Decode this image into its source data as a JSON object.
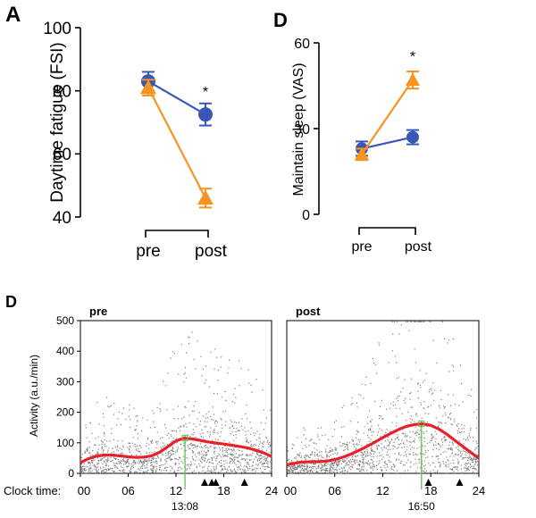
{
  "panels": {
    "A": {
      "letter": "A"
    },
    "D1": {
      "letter": "D"
    },
    "D2": {
      "letter": "D"
    }
  },
  "colors": {
    "blue_series": "#3a57b5",
    "orange_series": "#f7931e",
    "activity_points": "#7f7f7f",
    "fit_curve": "#e8202a",
    "peak_line": "#5cc04a"
  },
  "chart_data": [
    {
      "type": "line",
      "panel": "A",
      "categories": [
        "pre",
        "post"
      ],
      "ylabel": "Daytime fatigue (FSI)",
      "ylim": [
        40,
        100
      ],
      "yticks": [
        40,
        60,
        80,
        100
      ],
      "series": [
        {
          "marker": "circle",
          "color": "#3a57b5",
          "values": [
            83,
            72.5
          ],
          "err": [
            3,
            3.5
          ]
        },
        {
          "marker": "triangle",
          "color": "#f7931e",
          "values": [
            81,
            46
          ],
          "err": [
            2.5,
            3
          ]
        }
      ],
      "annotations": [
        {
          "text": "*",
          "category": "post"
        }
      ]
    },
    {
      "type": "line",
      "panel": "D",
      "categories": [
        "pre",
        "post"
      ],
      "ylabel": "Maintain sleep (VAS)",
      "ylim": [
        0,
        60
      ],
      "yticks": [
        0,
        30,
        60
      ],
      "series": [
        {
          "marker": "circle",
          "color": "#3a57b5",
          "values": [
            23,
            27
          ],
          "err": [
            2.5,
            2.5
          ]
        },
        {
          "marker": "triangle",
          "color": "#f7931e",
          "values": [
            21,
            47
          ],
          "err": [
            2,
            3
          ]
        }
      ],
      "annotations": [
        {
          "text": "*",
          "category": "post"
        }
      ]
    },
    {
      "type": "scatter",
      "panel": "D",
      "ylabel": "Activity (a.u./min)",
      "ylim": [
        0,
        500
      ],
      "yticks": [
        0,
        100,
        200,
        300,
        400,
        500
      ],
      "xlim": [
        0,
        24
      ],
      "xticks": [
        "00",
        "06",
        "12",
        "18",
        "24"
      ],
      "xtick_values": [
        0,
        6,
        12,
        18,
        24
      ],
      "clock_label": "Clock time:",
      "subplots": [
        {
          "title": "pre",
          "peak_time": 13.13,
          "peak_label": "13:08",
          "peak_value": 115,
          "markers": [
            15.6,
            16.5,
            17.0,
            20.6
          ],
          "fit_curve": [
            [
              0,
              35
            ],
            [
              1,
              48
            ],
            [
              2,
              56
            ],
            [
              3,
              60
            ],
            [
              4,
              60
            ],
            [
              5,
              57
            ],
            [
              6,
              54
            ],
            [
              7,
              52
            ],
            [
              8,
              53
            ],
            [
              9,
              58
            ],
            [
              10,
              70
            ],
            [
              11,
              88
            ],
            [
              12,
              106
            ],
            [
              13,
              115
            ],
            [
              14,
              113
            ],
            [
              15,
              108
            ],
            [
              16,
              103
            ],
            [
              17,
              99
            ],
            [
              18,
              96
            ],
            [
              19,
              92
            ],
            [
              20,
              88
            ],
            [
              21,
              83
            ],
            [
              22,
              76
            ],
            [
              23,
              67
            ],
            [
              24,
              55
            ]
          ]
        },
        {
          "title": "post",
          "peak_time": 16.83,
          "peak_label": "16:50",
          "peak_value": 162,
          "markers": [
            17.7,
            21.6
          ],
          "fit_curve": [
            [
              0,
              28
            ],
            [
              1,
              33
            ],
            [
              2,
              37
            ],
            [
              3,
              38
            ],
            [
              4,
              38
            ],
            [
              5,
              40
            ],
            [
              6,
              45
            ],
            [
              7,
              53
            ],
            [
              8,
              63
            ],
            [
              9,
              75
            ],
            [
              10,
              88
            ],
            [
              11,
              102
            ],
            [
              12,
              117
            ],
            [
              13,
              131
            ],
            [
              14,
              144
            ],
            [
              15,
              154
            ],
            [
              16,
              160
            ],
            [
              17,
              162
            ],
            [
              18,
              157
            ],
            [
              19,
              145
            ],
            [
              20,
              128
            ],
            [
              21,
              108
            ],
            [
              22,
              88
            ],
            [
              23,
              68
            ],
            [
              24,
              50
            ]
          ]
        }
      ]
    }
  ]
}
